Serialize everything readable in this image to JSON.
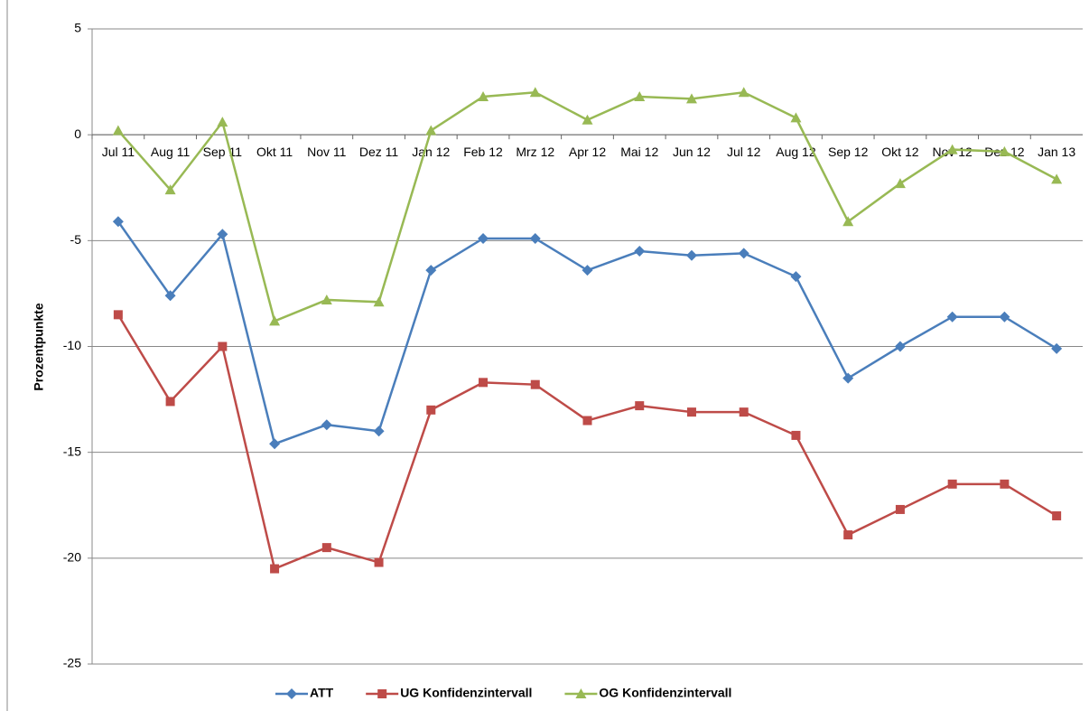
{
  "chart_data": {
    "type": "line",
    "y_label": "Prozentpunkte",
    "categories": [
      "Jul 11",
      "Aug 11",
      "Sep 11",
      "Okt 11",
      "Nov 11",
      "Dez 11",
      "Jan 12",
      "Feb 12",
      "Mrz 12",
      "Apr 12",
      "Mai 12",
      "Jun 12",
      "Jul 12",
      "Aug 12",
      "Sep 12",
      "Okt 12",
      "Nov 12",
      "Dez 12",
      "Jan 13"
    ],
    "series": [
      {
        "name": "ATT",
        "color": "#4a7ebb",
        "marker": "diamond",
        "values": [
          -4.1,
          -7.6,
          -4.7,
          -14.6,
          -13.7,
          -14.0,
          -6.4,
          -4.9,
          -4.9,
          -6.4,
          -5.5,
          -5.7,
          -5.6,
          -6.7,
          -11.5,
          -10.0,
          -8.6,
          -8.6,
          -10.1
        ]
      },
      {
        "name": "UG Konfidenzintervall",
        "color": "#be4b48",
        "marker": "square",
        "values": [
          -8.5,
          -12.6,
          -10.0,
          -20.5,
          -19.5,
          -20.2,
          -13.0,
          -11.7,
          -11.8,
          -13.5,
          -12.8,
          -13.1,
          -13.1,
          -14.2,
          -18.9,
          -17.7,
          -16.5,
          -16.5,
          -18.0
        ]
      },
      {
        "name": "OG Konfidenzintervall",
        "color": "#98b954",
        "marker": "triangle",
        "values": [
          0.2,
          -2.6,
          0.6,
          -8.8,
          -7.8,
          -7.9,
          0.2,
          1.8,
          2.0,
          0.7,
          1.8,
          1.7,
          2.0,
          0.8,
          -4.1,
          -2.3,
          -0.7,
          -0.8,
          -2.1
        ]
      }
    ],
    "ylim": [
      -25,
      5
    ],
    "yticks": [
      5,
      0,
      -5,
      -10,
      -15,
      -20,
      -25
    ],
    "grid": true,
    "legend": "bottom"
  }
}
